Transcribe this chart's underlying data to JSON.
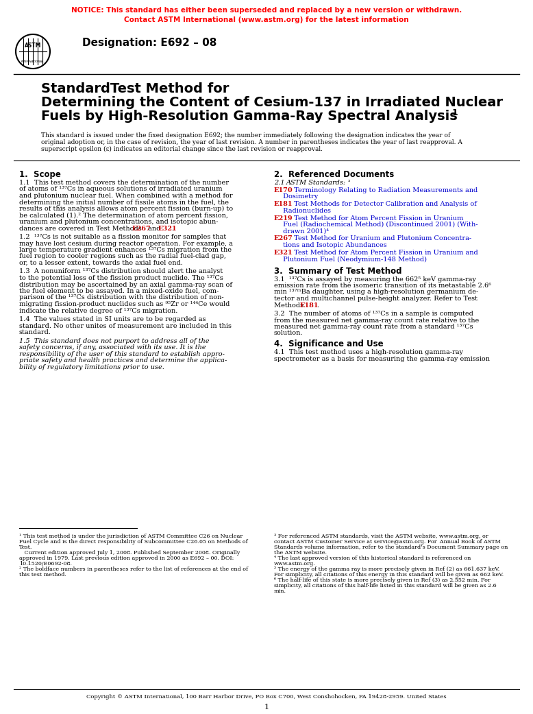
{
  "notice_line1": "NOTICE: This standard has either been superseded and replaced by a new version or withdrawn.",
  "notice_line2": "Contact ASTM International (www.astm.org) for the latest information",
  "notice_color": "#FF0000",
  "designation": "Designation: E692 – 08",
  "title_line1": "StandardTest Method for",
  "title_line2": "Determining the Content of Cesium-137 in Irradiated Nuclear",
  "title_line3": "Fuels by High-Resolution Gamma-Ray Spectral Analysis",
  "title_superscript": "1",
  "bg_color": "#FFFFFF",
  "text_color": "#000000",
  "ref_blue": "#0000CD",
  "ref_red": "#CC0000",
  "link_blue": "#0000CD",
  "copyright": "Copyright © ASTM International, 100 Barr Harbor Drive, PO Box C700, West Conshohocken, PA 19428-2959. United States"
}
